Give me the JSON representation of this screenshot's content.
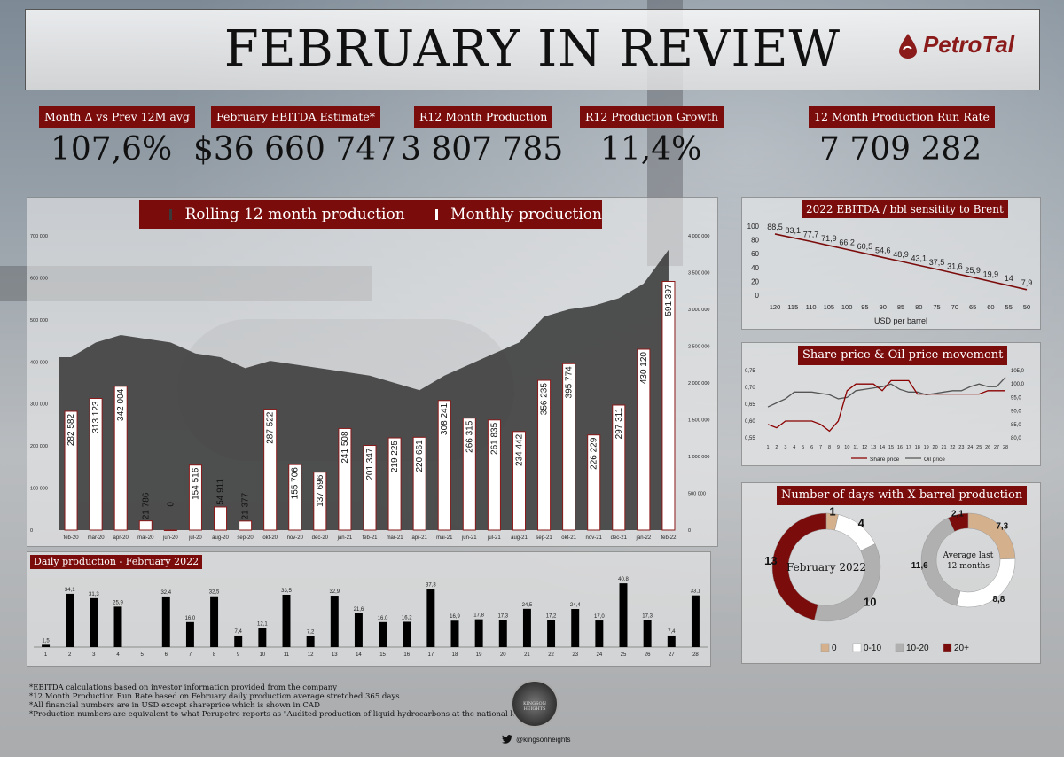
{
  "title": "FEBRUARY IN REVIEW",
  "logo_text": "PetroTal",
  "kpis": [
    {
      "label": "Month Δ vs Prev 12M avg",
      "value": "107,6%"
    },
    {
      "label": "February EBITDA Estimate*",
      "value": "$36 660 747"
    },
    {
      "label": "R12 Month Production",
      "value": "3 807 785"
    },
    {
      "label": "R12 Production Growth",
      "value": "11,4%"
    },
    {
      "label": "12 Month Production Run Rate",
      "value": "7 709 282"
    }
  ],
  "chart_data": [
    {
      "type": "bar",
      "legend": [
        "Rolling 12 month production",
        "Monthly production"
      ],
      "categories": [
        "feb-20",
        "mar-20",
        "apr-20",
        "mai-20",
        "jun-20",
        "jul-20",
        "aug-20",
        "sep-20",
        "okt-20",
        "nov-20",
        "dec-20",
        "jan-21",
        "feb-21",
        "mar-21",
        "apr-21",
        "mai-21",
        "jun-21",
        "jul-21",
        "aug-21",
        "sep-21",
        "okt-21",
        "nov-21",
        "dec-21",
        "jan-22",
        "feb-22"
      ],
      "series": [
        {
          "name": "Monthly production",
          "type": "bar",
          "axis": "left",
          "values": [
            282582,
            313123,
            342004,
            21786,
            0,
            154516,
            54911,
            21377,
            287522,
            155706,
            137696,
            241508,
            201347,
            219225,
            220661,
            308241,
            266315,
            261835,
            234442,
            356235,
            395774,
            226229,
            297311,
            430120,
            591397
          ],
          "labels": [
            "282 582",
            "313 123",
            "342 004",
            "21 786",
            "0",
            "154 516",
            "54 911",
            "21 377",
            "287 522",
            "155 706",
            "137 696",
            "241 508",
            "201 347",
            "219 225",
            "220 661",
            "308 241",
            "266 315",
            "261 835",
            "234 442",
            "356 235",
            "395 774",
            "226 229",
            "297 311",
            "430 120",
            "591 397"
          ]
        },
        {
          "name": "Rolling 12 month production",
          "type": "area",
          "axis": "right",
          "values": [
            2350000,
            2550000,
            2650000,
            2600000,
            2550000,
            2400000,
            2350000,
            2200000,
            2300000,
            2250000,
            2200000,
            2150000,
            2100000,
            2000000,
            1900000,
            2100000,
            2250000,
            2400000,
            2550000,
            2900000,
            3000000,
            3050000,
            3150000,
            3350000,
            3808000
          ]
        }
      ],
      "y_left": {
        "ticks": [
          "0",
          "100 000",
          "200 000",
          "300 000",
          "400 000",
          "500 000",
          "600 000",
          "700 000"
        ],
        "range": [
          0,
          700000
        ]
      },
      "y_right": {
        "ticks": [
          "0",
          "500 000",
          "1 000 000",
          "1 500 000",
          "2 000 000",
          "2 500 000",
          "3 000 000",
          "3 500 000",
          "4 000 000"
        ],
        "range": [
          0,
          4000000
        ]
      }
    },
    {
      "type": "line",
      "title": "2022 EBITDA / bbl sensitity to Brent",
      "xlabel": "USD per barrel",
      "x": [
        120,
        115,
        110,
        105,
        100,
        95,
        90,
        85,
        80,
        75,
        70,
        65,
        60,
        55,
        50
      ],
      "values": [
        88.5,
        83.1,
        77.7,
        71.9,
        66.2,
        60.5,
        54.6,
        48.9,
        43.1,
        37.5,
        31.6,
        25.9,
        19.9,
        14,
        7.9
      ],
      "labels": [
        "88,5",
        "83,1",
        "77,7",
        "71,9",
        "66,2",
        "60,5",
        "54,6",
        "48,9",
        "43,1",
        "37,5",
        "31,6",
        "25,9",
        "19,9",
        "14",
        "7,9"
      ],
      "y_ticks": [
        "0",
        "20",
        "40",
        "60",
        "80",
        "100"
      ],
      "ylim": [
        0,
        100
      ]
    },
    {
      "type": "line",
      "title": "Share price & Oil price movement",
      "x": [
        1,
        2,
        3,
        4,
        5,
        6,
        7,
        8,
        9,
        10,
        11,
        12,
        13,
        14,
        15,
        16,
        17,
        18,
        19,
        20,
        21,
        22,
        23,
        24,
        25,
        26,
        27,
        28
      ],
      "series": [
        {
          "name": "Share price",
          "axis": "left",
          "color": "#8b0000",
          "values": [
            0.59,
            0.58,
            0.6,
            0.6,
            0.6,
            0.6,
            0.59,
            0.57,
            0.6,
            0.69,
            0.71,
            0.71,
            0.71,
            0.69,
            0.72,
            0.72,
            0.72,
            0.68,
            0.68,
            0.68,
            0.68,
            0.68,
            0.68,
            0.68,
            0.68,
            0.69,
            0.69,
            0.69
          ]
        },
        {
          "name": "Oil price",
          "axis": "right",
          "color": "#555555",
          "values": [
            91.5,
            93,
            94.5,
            97,
            97,
            97,
            96.5,
            96,
            94.5,
            95,
            97.5,
            98,
            98.5,
            99,
            100,
            98,
            97,
            97,
            96,
            96.5,
            97,
            97.5,
            97.5,
            99,
            100,
            99,
            99,
            102.5
          ]
        }
      ],
      "y_left": {
        "ticks": [
          "0,55",
          "0,60",
          "0,65",
          "0,70",
          "0,75"
        ],
        "range": [
          0.55,
          0.75
        ]
      },
      "y_right": {
        "ticks": [
          "80,0",
          "85,0",
          "90,0",
          "95,0",
          "100,0",
          "105,0"
        ],
        "range": [
          80,
          105
        ]
      }
    },
    {
      "type": "pie",
      "title": "Number of days with X barrel production",
      "legend": [
        "0",
        "0-10",
        "10-20",
        "20+"
      ],
      "colors": [
        "#d4b08c",
        "#ffffff",
        "#b0b0b0",
        "#7b0c0c"
      ],
      "rings": [
        {
          "center_label": "February 2022",
          "values": [
            1,
            4,
            10,
            13
          ],
          "labels": [
            "1",
            "4",
            "10",
            "13"
          ]
        },
        {
          "center_label": "Average last 12 months",
          "values": [
            7.3,
            8.8,
            11.6,
            2.1
          ],
          "labels": [
            "7,3",
            "8,8",
            "11,6",
            "2,1"
          ]
        }
      ]
    },
    {
      "type": "bar",
      "title": "Daily production - February 2022",
      "categories": [
        "1",
        "2",
        "3",
        "4",
        "5",
        "6",
        "7",
        "8",
        "9",
        "10",
        "11",
        "12",
        "13",
        "14",
        "15",
        "16",
        "17",
        "18",
        "19",
        "20",
        "21",
        "22",
        "23",
        "24",
        "25",
        "26",
        "27",
        "28"
      ],
      "values": [
        1.5,
        34.1,
        31.3,
        25.9,
        0,
        32.4,
        16.0,
        32.5,
        7.4,
        12.1,
        33.5,
        7.2,
        32.9,
        21.6,
        16.0,
        16.2,
        37.3,
        16.9,
        17.8,
        17.3,
        24.5,
        17.2,
        24.4,
        17.0,
        40.8,
        17.3,
        7.4,
        33.1
      ],
      "labels": [
        "1,5",
        "34,1",
        "31,3",
        "25,9",
        "",
        "32,4",
        "16,0",
        "32,5",
        "7,4",
        "12,1",
        "33,5",
        "7,2",
        "32,9",
        "21,6",
        "16,0",
        "16,2",
        "37,3",
        "16,9",
        "17,8",
        "17,3",
        "24,5",
        "17,2",
        "24,4",
        "17,0",
        "40,8",
        "17,3",
        "7,4",
        "33,1"
      ]
    }
  ],
  "footnotes": [
    "*EBITDA calculations based on investor information provided from the company",
    "*12 Month Production Run Rate based on February daily production average stretched 365 days",
    "*All financial numbers are in USD except shareprice which is shown in CAD",
    "*Production numbers are equivalent to what Perupetro reports as \"Audited production of liquid hydrocarbons at the national level\""
  ],
  "twitter_handle": "@kingsonheights",
  "badge_text": "KINGSON HEIGHTS",
  "colors": {
    "accent": "#7b0c0c",
    "area": "#3a3a3a",
    "oil_line": "#555555",
    "share_line": "#8b0000"
  }
}
